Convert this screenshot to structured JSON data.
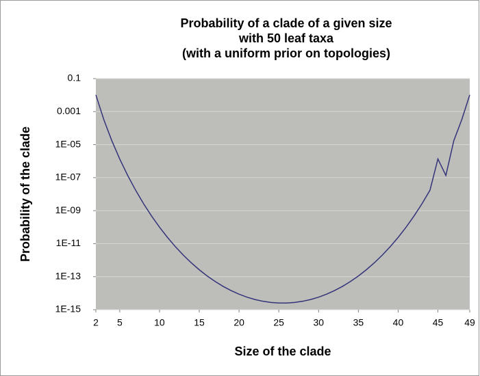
{
  "chart_data": {
    "type": "line",
    "title": [
      "Probability of a clade of a given size",
      "with 50 leaf taxa",
      "(with a uniform prior on topologies)"
    ],
    "x_label": "Size of the clade",
    "y_label": "Probability of the clade",
    "x": [
      2,
      3,
      4,
      5,
      6,
      7,
      8,
      9,
      10,
      11,
      12,
      13,
      14,
      15,
      16,
      17,
      18,
      19,
      20,
      21,
      22,
      23,
      24,
      25,
      26,
      27,
      28,
      29,
      30,
      31,
      32,
      33,
      34,
      35,
      36,
      37,
      38,
      39,
      40,
      41,
      42,
      43,
      44,
      45,
      46,
      47,
      48,
      49
    ],
    "values": [
      0.0103,
      0.000326,
      1.75e-05,
      1.35e-06,
      1.36e-07,
      1.72e-08,
      2.63e-09,
      4.76e-10,
      9.99e-11,
      2.4e-11,
      6.55e-12,
      2.01e-12,
      6.88e-13,
      2.62e-13,
      1.1e-13,
      5.09e-14,
      2.58e-14,
      1.44e-14,
      8.7e-15,
      5.75e-15,
      4.14e-15,
      3.24e-15,
      2.75e-15,
      2.53e-15,
      2.53e-15,
      2.75e-15,
      3.24e-15,
      4.14e-15,
      5.75e-15,
      8.7e-15,
      1.44e-14,
      2.58e-14,
      5.09e-14,
      1.1e-13,
      2.62e-13,
      6.88e-13,
      2.01e-12,
      6.55e-12,
      2.4e-11,
      9.99e-11,
      4.76e-10,
      2.63e-09,
      1.72e-08,
      1.35e-06,
      1.36e-07,
      1.75e-05,
      0.000326,
      0.0103
    ],
    "color": "#33337a",
    "plot_background": "#bdbdb9",
    "xlim": [
      2,
      49
    ],
    "xticks": [
      2,
      5,
      10,
      15,
      20,
      25,
      30,
      35,
      40,
      45,
      49
    ],
    "ylim": [
      1e-15,
      0.1
    ],
    "yscale": "log",
    "yticks": [
      {
        "value": 1e-15,
        "label": "1E-15"
      },
      {
        "value": 1e-13,
        "label": "1E-13"
      },
      {
        "value": 1e-11,
        "label": "1E-11"
      },
      {
        "value": 1e-09,
        "label": "1E-09"
      },
      {
        "value": 1e-07,
        "label": "1E-07"
      },
      {
        "value": 1e-05,
        "label": "1E-05"
      },
      0.001,
      0.1
    ],
    "grid": true
  }
}
